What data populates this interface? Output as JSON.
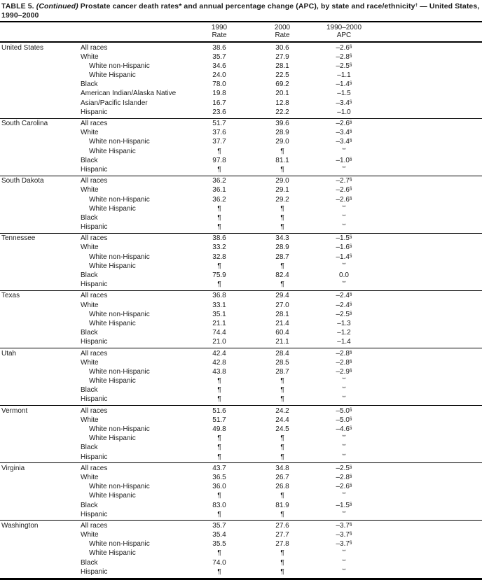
{
  "title": {
    "prefix": "TABLE 5.",
    "continued": "(Continued)",
    "body": "Prostate cancer death rates* and annual percentage change (APC), by state and race/ethnicity",
    "dagger": "†",
    "suffix": "— United States, 1990–2000"
  },
  "header": {
    "rate_1990": "1990\nRate",
    "rate_2000": "2000\nRate",
    "apc": "1990–2000\nAPC"
  },
  "table": {
    "groups": [
      {
        "state": "United States",
        "rows": [
          {
            "label": "All races",
            "indent": false,
            "r1990": "38.6",
            "r2000": "30.6",
            "apc": "–2.6",
            "apc_sup": "§"
          },
          {
            "label": "White",
            "indent": false,
            "r1990": "35.7",
            "r2000": "27.9",
            "apc": "–2.8",
            "apc_sup": "§"
          },
          {
            "label": "White non-Hispanic",
            "indent": true,
            "r1990": "34.6",
            "r2000": "28.1",
            "apc": "–2.5",
            "apc_sup": "§"
          },
          {
            "label": "White Hispanic",
            "indent": true,
            "r1990": "24.0",
            "r2000": "22.5",
            "apc": "–1.1",
            "apc_sup": ""
          },
          {
            "label": "Black",
            "indent": false,
            "r1990": "78.0",
            "r2000": "69.2",
            "apc": "–1.4",
            "apc_sup": "§"
          },
          {
            "label": "American Indian/Alaska Native",
            "indent": false,
            "r1990": "19.8",
            "r2000": "20.1",
            "apc": "–1.5",
            "apc_sup": ""
          },
          {
            "label": "Asian/Pacific Islander",
            "indent": false,
            "r1990": "16.7",
            "r2000": "12.8",
            "apc": "–3.4",
            "apc_sup": "§"
          },
          {
            "label": "Hispanic",
            "indent": false,
            "r1990": "23.6",
            "r2000": "22.2",
            "apc": "–1.0",
            "apc_sup": ""
          }
        ]
      },
      {
        "state": "South Carolina",
        "rows": [
          {
            "label": "All races",
            "indent": false,
            "r1990": "51.7",
            "r2000": "39.6",
            "apc": "–2.6",
            "apc_sup": "§"
          },
          {
            "label": "White",
            "indent": false,
            "r1990": "37.6",
            "r2000": "28.9",
            "apc": "–3.4",
            "apc_sup": "§"
          },
          {
            "label": "White non-Hispanic",
            "indent": true,
            "r1990": "37.7",
            "r2000": "29.0",
            "apc": "–3.4",
            "apc_sup": "§"
          },
          {
            "label": "White Hispanic",
            "indent": true,
            "r1990": "¶",
            "r2000": "¶",
            "apc": "",
            "apc_sup": "**"
          },
          {
            "label": "Black",
            "indent": false,
            "r1990": "97.8",
            "r2000": "81.1",
            "apc": "–1.0",
            "apc_sup": "§"
          },
          {
            "label": "Hispanic",
            "indent": false,
            "r1990": "¶",
            "r2000": "¶",
            "apc": "",
            "apc_sup": "**"
          }
        ]
      },
      {
        "state": "South Dakota",
        "rows": [
          {
            "label": "All races",
            "indent": false,
            "r1990": "36.2",
            "r2000": "29.0",
            "apc": "–2.7",
            "apc_sup": "§"
          },
          {
            "label": "White",
            "indent": false,
            "r1990": "36.1",
            "r2000": "29.1",
            "apc": "–2.6",
            "apc_sup": "§"
          },
          {
            "label": "White non-Hispanic",
            "indent": true,
            "r1990": "36.2",
            "r2000": "29.2",
            "apc": "–2.6",
            "apc_sup": "§"
          },
          {
            "label": "White Hispanic",
            "indent": true,
            "r1990": "¶",
            "r2000": "¶",
            "apc": "",
            "apc_sup": "**"
          },
          {
            "label": "Black",
            "indent": false,
            "r1990": "¶",
            "r2000": "¶",
            "apc": "",
            "apc_sup": "**"
          },
          {
            "label": "Hispanic",
            "indent": false,
            "r1990": "¶",
            "r2000": "¶",
            "apc": "",
            "apc_sup": "**"
          }
        ]
      },
      {
        "state": "Tennessee",
        "rows": [
          {
            "label": "All races",
            "indent": false,
            "r1990": "38.6",
            "r2000": "34.3",
            "apc": "–1.5",
            "apc_sup": "§"
          },
          {
            "label": "White",
            "indent": false,
            "r1990": "33.2",
            "r2000": "28.9",
            "apc": "–1.6",
            "apc_sup": "§"
          },
          {
            "label": "White non-Hispanic",
            "indent": true,
            "r1990": "32.8",
            "r2000": "28.7",
            "apc": "–1.4",
            "apc_sup": "§"
          },
          {
            "label": "White Hispanic",
            "indent": true,
            "r1990": "¶",
            "r2000": "¶",
            "apc": "",
            "apc_sup": "**"
          },
          {
            "label": "Black",
            "indent": false,
            "r1990": "75.9",
            "r2000": "82.4",
            "apc": "0.0",
            "apc_sup": ""
          },
          {
            "label": "Hispanic",
            "indent": false,
            "r1990": "¶",
            "r2000": "¶",
            "apc": "",
            "apc_sup": "**"
          }
        ]
      },
      {
        "state": "Texas",
        "rows": [
          {
            "label": "All races",
            "indent": false,
            "r1990": "36.8",
            "r2000": "29.4",
            "apc": "–2.4",
            "apc_sup": "§"
          },
          {
            "label": "White",
            "indent": false,
            "r1990": "33.1",
            "r2000": "27.0",
            "apc": "–2.4",
            "apc_sup": "§"
          },
          {
            "label": "White non-Hispanic",
            "indent": true,
            "r1990": "35.1",
            "r2000": "28.1",
            "apc": "–2.5",
            "apc_sup": "§"
          },
          {
            "label": "White Hispanic",
            "indent": true,
            "r1990": "21.1",
            "r2000": "21.4",
            "apc": "–1.3",
            "apc_sup": ""
          },
          {
            "label": "Black",
            "indent": false,
            "r1990": "74.4",
            "r2000": "60.4",
            "apc": "–1.2",
            "apc_sup": ""
          },
          {
            "label": "Hispanic",
            "indent": false,
            "r1990": "21.0",
            "r2000": "21.1",
            "apc": "–1.4",
            "apc_sup": ""
          }
        ]
      },
      {
        "state": "Utah",
        "rows": [
          {
            "label": "All races",
            "indent": false,
            "r1990": "42.4",
            "r2000": "28.4",
            "apc": "–2.8",
            "apc_sup": "§"
          },
          {
            "label": "White",
            "indent": false,
            "r1990": "42.8",
            "r2000": "28.5",
            "apc": "–2.8",
            "apc_sup": "§"
          },
          {
            "label": "White non-Hispanic",
            "indent": true,
            "r1990": "43.8",
            "r2000": "28.7",
            "apc": "–2.9",
            "apc_sup": "§"
          },
          {
            "label": "White Hispanic",
            "indent": true,
            "r1990": "¶",
            "r2000": "¶",
            "apc": "",
            "apc_sup": "**"
          },
          {
            "label": "Black",
            "indent": false,
            "r1990": "¶",
            "r2000": "¶",
            "apc": "",
            "apc_sup": "**"
          },
          {
            "label": "Hispanic",
            "indent": false,
            "r1990": "¶",
            "r2000": "¶",
            "apc": "",
            "apc_sup": "**"
          }
        ]
      },
      {
        "state": "Vermont",
        "rows": [
          {
            "label": "All races",
            "indent": false,
            "r1990": "51.6",
            "r2000": "24.2",
            "apc": "–5.0",
            "apc_sup": "§"
          },
          {
            "label": "White",
            "indent": false,
            "r1990": "51.7",
            "r2000": "24.4",
            "apc": "–5.0",
            "apc_sup": "§"
          },
          {
            "label": "White non-Hispanic",
            "indent": true,
            "r1990": "49.8",
            "r2000": "24.5",
            "apc": "–4.6",
            "apc_sup": "§"
          },
          {
            "label": "White Hispanic",
            "indent": true,
            "r1990": "¶",
            "r2000": "¶",
            "apc": "",
            "apc_sup": "**"
          },
          {
            "label": "Black",
            "indent": false,
            "r1990": "¶",
            "r2000": "¶",
            "apc": "",
            "apc_sup": "**"
          },
          {
            "label": "Hispanic",
            "indent": false,
            "r1990": "¶",
            "r2000": "¶",
            "apc": "",
            "apc_sup": "**"
          }
        ]
      },
      {
        "state": "Virginia",
        "rows": [
          {
            "label": "All races",
            "indent": false,
            "r1990": "43.7",
            "r2000": "34.8",
            "apc": "–2.5",
            "apc_sup": "§"
          },
          {
            "label": "White",
            "indent": false,
            "r1990": "36.5",
            "r2000": "26.7",
            "apc": "–2.8",
            "apc_sup": "§"
          },
          {
            "label": "White non-Hispanic",
            "indent": true,
            "r1990": "36.0",
            "r2000": "26.8",
            "apc": "–2.6",
            "apc_sup": "§"
          },
          {
            "label": "White Hispanic",
            "indent": true,
            "r1990": "¶",
            "r2000": "¶",
            "apc": "",
            "apc_sup": "**"
          },
          {
            "label": "Black",
            "indent": false,
            "r1990": "83.0",
            "r2000": "81.9",
            "apc": "–1.5",
            "apc_sup": "§"
          },
          {
            "label": "Hispanic",
            "indent": false,
            "r1990": "¶",
            "r2000": "¶",
            "apc": "",
            "apc_sup": "**"
          }
        ]
      },
      {
        "state": "Washington",
        "rows": [
          {
            "label": "All races",
            "indent": false,
            "r1990": "35.7",
            "r2000": "27.6",
            "apc": "–3.7",
            "apc_sup": "§"
          },
          {
            "label": "White",
            "indent": false,
            "r1990": "35.4",
            "r2000": "27.7",
            "apc": "–3.7",
            "apc_sup": "§"
          },
          {
            "label": "White non-Hispanic",
            "indent": true,
            "r1990": "35.5",
            "r2000": "27.8",
            "apc": "–3.7",
            "apc_sup": "§"
          },
          {
            "label": "White Hispanic",
            "indent": true,
            "r1990": "¶",
            "r2000": "¶",
            "apc": "",
            "apc_sup": "**"
          },
          {
            "label": "Black",
            "indent": false,
            "r1990": "74.0",
            "r2000": "¶",
            "apc": "",
            "apc_sup": "**"
          },
          {
            "label": "Hispanic",
            "indent": false,
            "r1990": "¶",
            "r2000": "¶",
            "apc": "",
            "apc_sup": "**"
          }
        ]
      }
    ]
  }
}
